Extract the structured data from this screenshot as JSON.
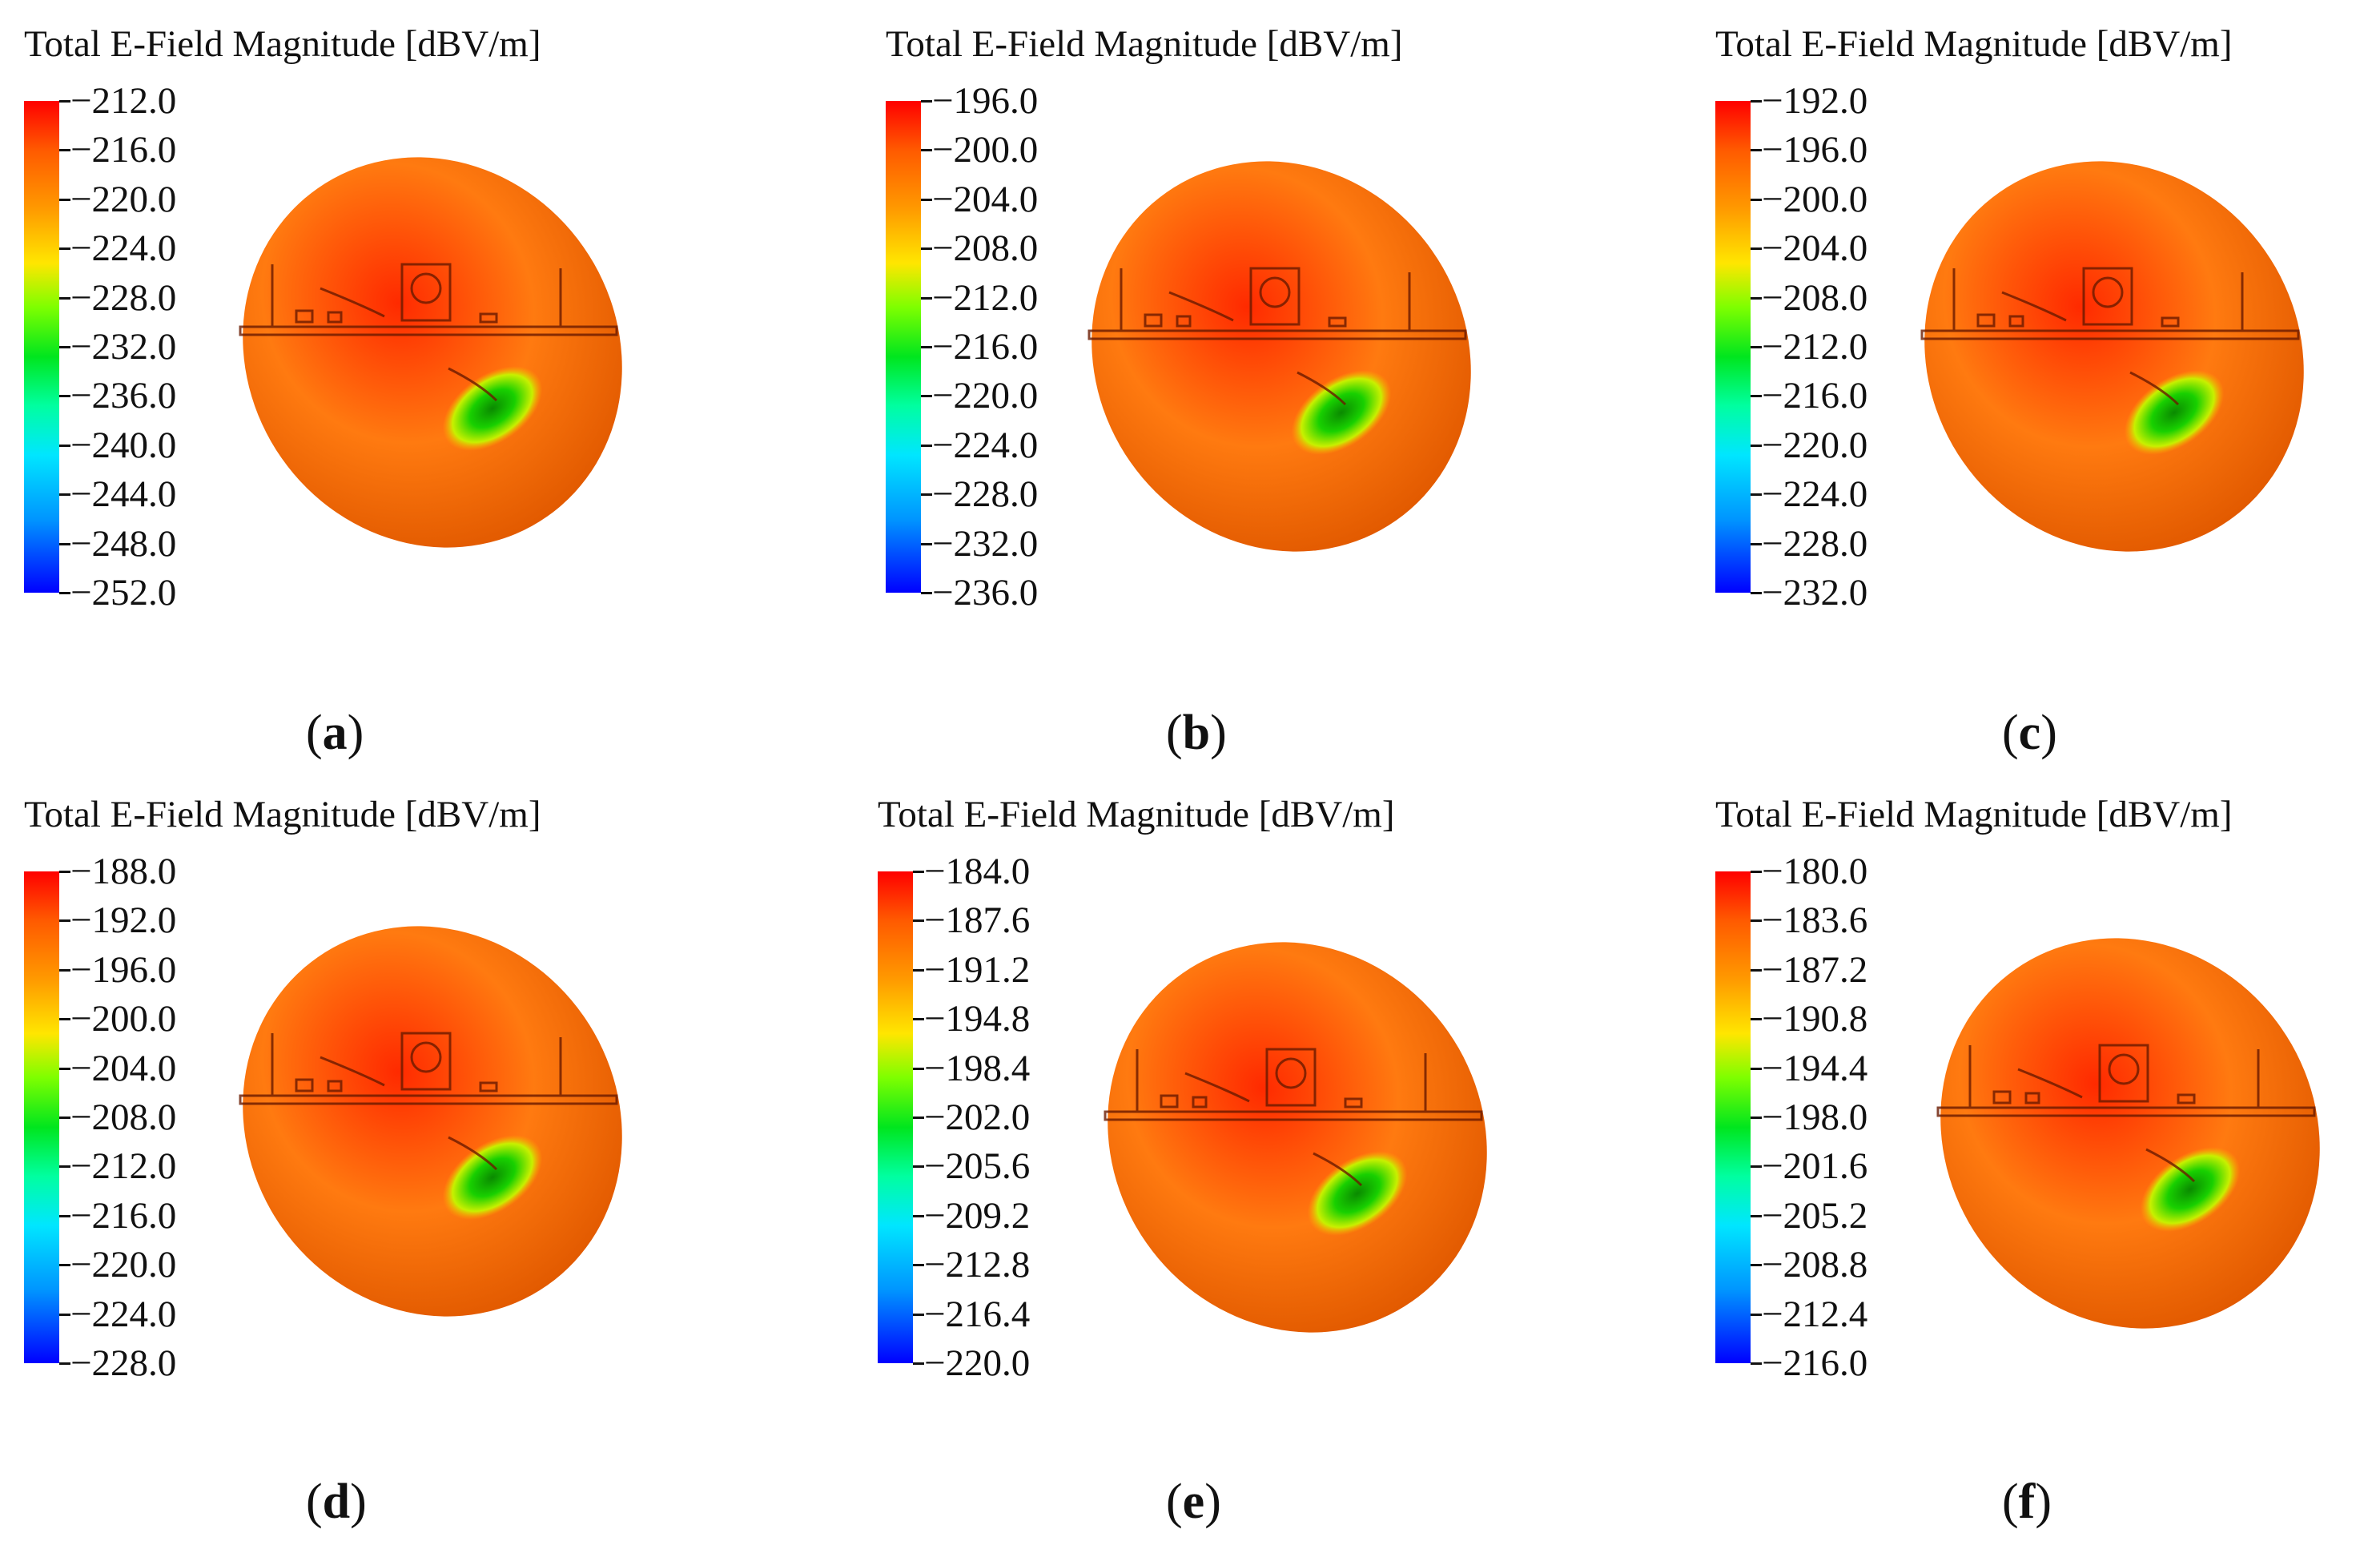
{
  "panels": [
    {
      "id": "a",
      "title": "Total E-Field Magnitude [dBV/m]",
      "caption_letter": "a",
      "ticks": [
        "−212.0",
        "−216.0",
        "−220.0",
        "−224.0",
        "−228.0",
        "−232.0",
        "−236.0",
        "−240.0",
        "−244.0",
        "−248.0",
        "−252.0"
      ]
    },
    {
      "id": "b",
      "title": "Total E-Field Magnitude [dBV/m]",
      "caption_letter": "b",
      "ticks": [
        "−196.0",
        "−200.0",
        "−204.0",
        "−208.0",
        "−212.0",
        "−216.0",
        "−220.0",
        "−224.0",
        "−228.0",
        "−232.0",
        "−236.0"
      ]
    },
    {
      "id": "c",
      "title": "Total E-Field Magnitude [dBV/m]",
      "caption_letter": "c",
      "ticks": [
        "−192.0",
        "−196.0",
        "−200.0",
        "−204.0",
        "−208.0",
        "−212.0",
        "−216.0",
        "−220.0",
        "−224.0",
        "−228.0",
        "−232.0"
      ]
    },
    {
      "id": "d",
      "title": "Total E-Field Magnitude [dBV/m]",
      "caption_letter": "d",
      "ticks": [
        "−188.0",
        "−192.0",
        "−196.0",
        "−200.0",
        "−204.0",
        "−208.0",
        "−212.0",
        "−216.0",
        "−220.0",
        "−224.0",
        "−228.0"
      ]
    },
    {
      "id": "e",
      "title": "Total E-Field Magnitude [dBV/m]",
      "caption_letter": "e",
      "ticks": [
        "−184.0",
        "−187.6",
        "−191.2",
        "−194.8",
        "−198.4",
        "−202.0",
        "−205.6",
        "−209.2",
        "−212.8",
        "−216.4",
        "−220.0"
      ]
    },
    {
      "id": "f",
      "title": "Total E-Field Magnitude [dBV/m]",
      "caption_letter": "f",
      "ticks": [
        "−180.0",
        "−183.6",
        "−187.2",
        "−190.8",
        "−194.4",
        "−198.0",
        "−201.6",
        "−205.2",
        "−208.8",
        "−212.4",
        "−216.0"
      ]
    }
  ],
  "colors": {
    "red": "#ff2a00",
    "orange": "#ff7a10",
    "green": "#18d000",
    "board": "#6a1a00"
  }
}
